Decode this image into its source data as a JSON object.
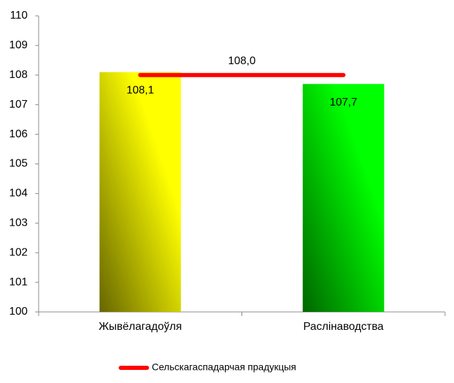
{
  "chart_data": {
    "type": "bar",
    "categories": [
      "Жывёлагадоўля",
      "Раслінаводства"
    ],
    "values": [
      108.1,
      107.7
    ],
    "value_labels": [
      "108,1",
      "107,7"
    ],
    "colors": [
      "#ffff00",
      "#00ff00"
    ],
    "line": {
      "name": "Сельскагаспадарчая прадукцыя",
      "color": "#ff0000",
      "value": 108.0,
      "value_label": "108,0"
    },
    "ylim": [
      100,
      110
    ],
    "yticks": [
      100,
      101,
      102,
      103,
      104,
      105,
      106,
      107,
      108,
      109,
      110
    ],
    "legend": "bottom"
  }
}
